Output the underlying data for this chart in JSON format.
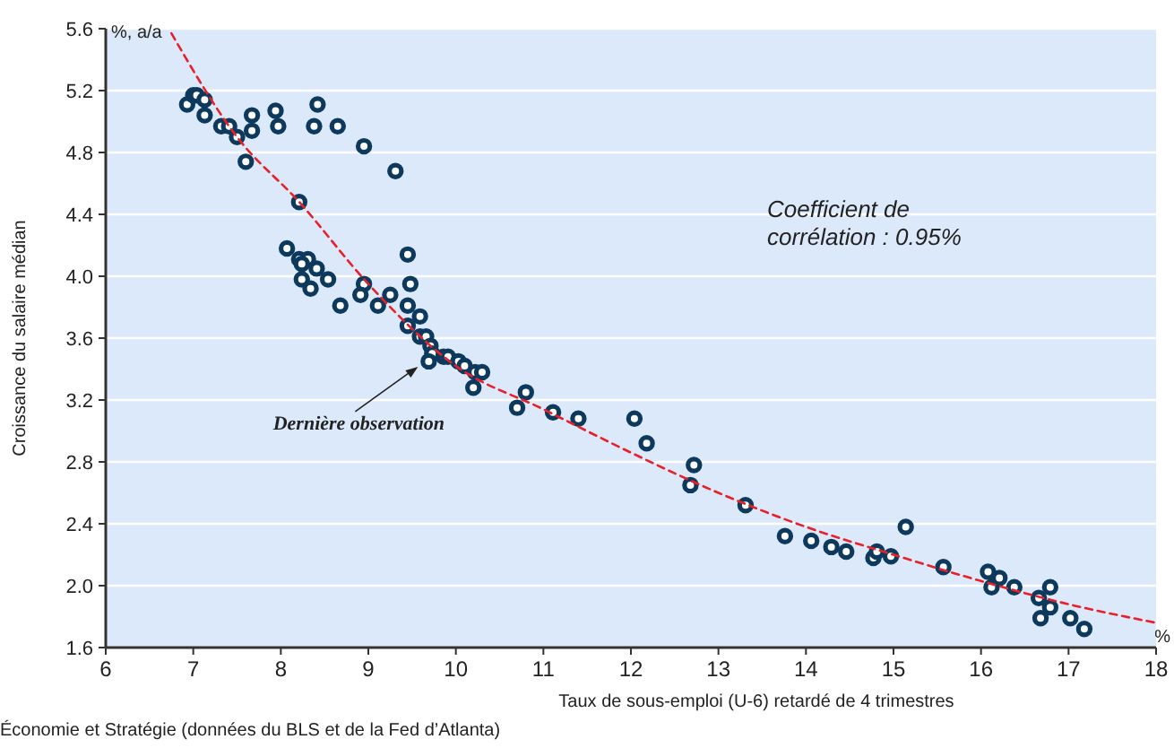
{
  "chart_data": {
    "type": "scatter",
    "xlabel": "Taux de sous-emploi (U-6) retardé de 4 trimestres",
    "ylabel": "Croissance du salaire médian",
    "xlim": [
      6,
      18
    ],
    "xticks": [
      6,
      7,
      8,
      9,
      10,
      11,
      12,
      13,
      14,
      15,
      16,
      17,
      18
    ],
    "ylim": [
      1.6,
      5.6
    ],
    "yticks": [
      1.6,
      {
        "value": 2,
        "label": "2.0"
      },
      2.4,
      2.8,
      3.2,
      3.6,
      {
        "value": 4,
        "label": "4.0"
      },
      4.4,
      4.8,
      5.2,
      5.6
    ],
    "grid": "y",
    "marker": "circle",
    "series": [
      {
        "color": "#0d3a5c",
        "x": [
          6.93,
          7.0,
          7.04,
          7.13,
          7.13,
          7.32,
          7.41,
          7.5,
          7.6,
          7.67,
          7.67,
          7.94,
          7.97,
          8.38,
          8.42,
          8.65,
          8.95,
          9.31,
          8.21,
          8.07,
          8.21,
          8.31,
          8.24,
          8.41,
          8.24,
          8.54,
          8.34,
          8.68,
          8.95,
          8.91,
          9.11,
          9.25,
          9.45,
          9.48,
          9.45,
          9.59,
          9.45,
          9.59,
          9.66,
          9.71,
          9.73,
          9.69,
          9.86,
          9.91,
          10.03,
          10.1,
          10.22,
          10.3,
          10.2,
          10.7,
          10.8,
          11.11,
          11.4,
          12.04,
          12.18,
          12.72,
          12.68,
          13.31,
          13.76,
          14.06,
          14.29,
          14.46,
          14.77,
          14.81,
          14.97,
          15.14,
          15.57,
          16.08,
          16.12,
          16.21,
          16.38,
          16.66,
          16.79,
          16.79,
          16.68,
          17.02,
          17.18
        ],
        "values": [
          5.11,
          5.17,
          5.17,
          5.14,
          5.04,
          4.97,
          4.97,
          4.9,
          4.74,
          5.04,
          4.94,
          5.07,
          4.97,
          4.97,
          5.11,
          4.97,
          4.84,
          4.68,
          4.48,
          4.18,
          4.11,
          4.11,
          4.08,
          4.05,
          3.98,
          3.98,
          3.92,
          3.81,
          3.95,
          3.88,
          3.81,
          3.88,
          4.14,
          3.95,
          3.81,
          3.74,
          3.68,
          3.61,
          3.61,
          3.55,
          3.5,
          3.45,
          3.48,
          3.48,
          3.45,
          3.42,
          3.38,
          3.38,
          3.28,
          3.15,
          3.25,
          3.12,
          3.08,
          3.08,
          2.92,
          2.78,
          2.65,
          2.52,
          2.32,
          2.29,
          2.25,
          2.22,
          2.18,
          2.22,
          2.19,
          2.38,
          2.12,
          2.09,
          1.99,
          2.05,
          1.99,
          1.92,
          1.99,
          1.86,
          1.79,
          1.79,
          1.72
        ]
      },
      {
        "type": "line",
        "color": "#e8202a",
        "line_style": "dashed",
        "marker": "none",
        "x": [
          6.75,
          7.5,
          8.21,
          9,
          10,
          11,
          12,
          13,
          14,
          15,
          16,
          17,
          18
        ],
        "values": [
          5.57,
          4.9,
          4.48,
          3.95,
          3.42,
          3.14,
          2.86,
          2.6,
          2.38,
          2.2,
          2.03,
          1.88,
          1.76
        ]
      }
    ],
    "annotations": [
      "%, a/a",
      "%",
      "Coefficient de\ncorrélation : 0.95%",
      {
        "text": "Dernière observation",
        "x": 9.69,
        "y": 3.45
      },
      "Économie et Stratégie (données du BLS et de la Fed d’Atlanta)"
    ]
  }
}
